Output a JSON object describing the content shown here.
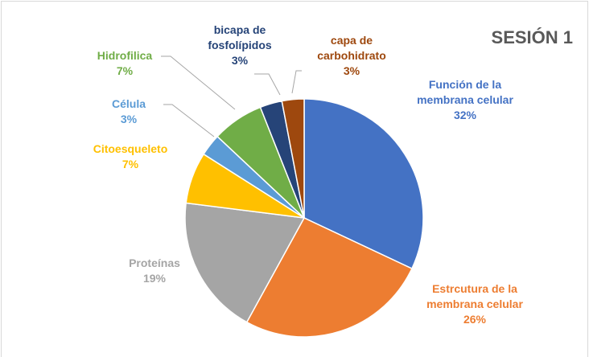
{
  "chart_data": {
    "type": "pie",
    "title": "SESIÓN 1",
    "categories": [
      "Función de la membrana celular",
      "Estrcutura  de la membrana celular",
      "Proteínas",
      "Citoesqueleto",
      "Célula",
      "Hidrofilica",
      "bicapa de fosfolípidos",
      "capa de carbohidrato"
    ],
    "values": [
      32,
      26,
      19,
      7,
      3,
      7,
      3,
      3
    ],
    "value_labels": [
      "32%",
      "26%",
      "19%",
      "7%",
      "3%",
      "7%",
      "3%",
      "3%"
    ],
    "colors": [
      "#4472c4",
      "#ed7d31",
      "#a5a5a5",
      "#ffc000",
      "#5b9bd5",
      "#70ad47",
      "#264478",
      "#9e480e"
    ]
  }
}
